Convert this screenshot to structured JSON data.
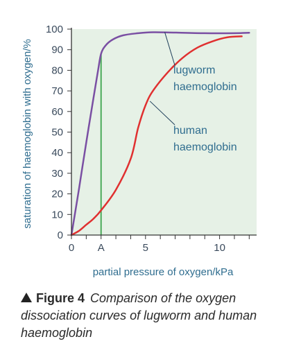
{
  "chart_data": {
    "type": "line",
    "title": "",
    "xlabel": "partial pressure of oxygen/kPa",
    "ylabel": "saturation of haemoglobin with oxygen/%",
    "xlim": [
      0,
      12.5
    ],
    "ylim": [
      0,
      100
    ],
    "x_ticks": [
      {
        "value": 0,
        "label": "0"
      },
      {
        "value": 2,
        "label": "A"
      },
      {
        "value": 5,
        "label": "5"
      },
      {
        "value": 10,
        "label": "10"
      }
    ],
    "y_ticks": [
      0,
      10,
      20,
      30,
      40,
      50,
      60,
      70,
      80,
      90,
      100
    ],
    "grid": false,
    "plot_background": "#e6f1e6",
    "series": [
      {
        "name": "lugworm haemoglobin",
        "color": "#7a4fa3",
        "points": [
          [
            0,
            0
          ],
          [
            0.5,
            22
          ],
          [
            1,
            45
          ],
          [
            1.5,
            67
          ],
          [
            1.8,
            80
          ],
          [
            2,
            88
          ],
          [
            2.3,
            92
          ],
          [
            2.8,
            95
          ],
          [
            3.5,
            97
          ],
          [
            4.5,
            98
          ],
          [
            5.5,
            98.5
          ],
          [
            7,
            98.3
          ],
          [
            9,
            98
          ],
          [
            11,
            98
          ],
          [
            12,
            98.2
          ]
        ]
      },
      {
        "name": "human haemoglobin",
        "color": "#e03030",
        "points": [
          [
            0,
            0
          ],
          [
            0.5,
            2
          ],
          [
            1,
            5
          ],
          [
            1.5,
            8
          ],
          [
            2,
            12
          ],
          [
            3,
            22
          ],
          [
            4,
            37
          ],
          [
            4.5,
            52
          ],
          [
            5,
            63
          ],
          [
            5.5,
            70
          ],
          [
            6.5,
            79
          ],
          [
            7.5,
            86
          ],
          [
            8.5,
            91
          ],
          [
            9.5,
            94
          ],
          [
            10.5,
            96
          ],
          [
            11.5,
            96.5
          ]
        ]
      }
    ],
    "marker_line": {
      "x": 2,
      "y": 88,
      "color": "#4aaa5a"
    },
    "annotations": [
      {
        "text": [
          "lugworm",
          "haemoglobin"
        ],
        "target": [
          6.3,
          98.5
        ]
      },
      {
        "text": [
          "human",
          "haemoglobin"
        ],
        "target": [
          5.3,
          65
        ]
      }
    ]
  },
  "caption": {
    "label": "Figure 4",
    "text": "Comparison of the oxygen dissociation curves of lugworm and human haemoglobin"
  }
}
